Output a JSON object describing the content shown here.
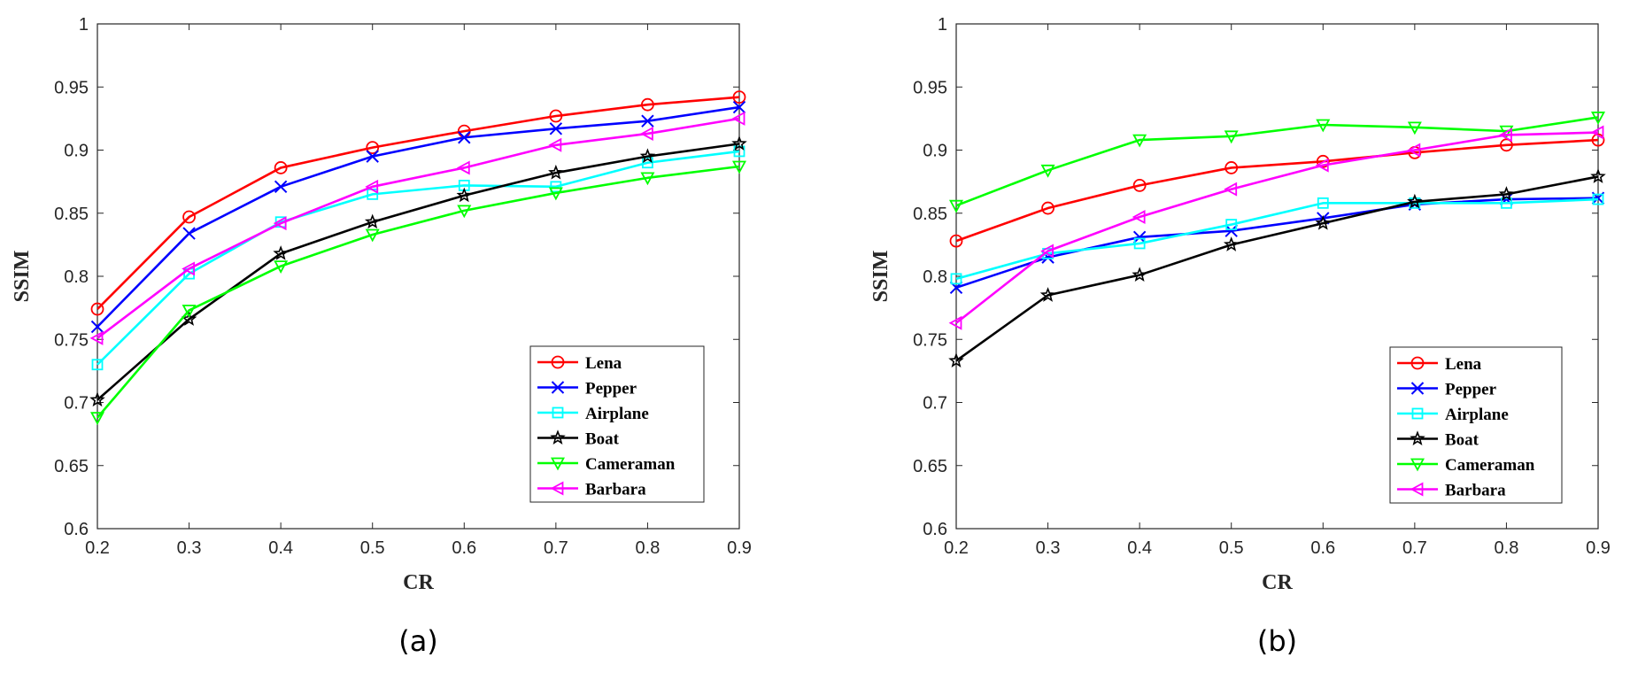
{
  "chart_data": [
    {
      "type": "line",
      "caption": "(a)",
      "xlabel": "CR",
      "ylabel": "SSIM",
      "xlim": [
        0.2,
        0.9
      ],
      "ylim": [
        0.6,
        1.0
      ],
      "xticks": [
        "0.2",
        "0.3",
        "0.4",
        "0.5",
        "0.6",
        "0.7",
        "0.8",
        "0.9"
      ],
      "yticks": [
        "0.6",
        "0.65",
        "0.7",
        "0.75",
        "0.8",
        "0.85",
        "0.9",
        "0.95",
        "1"
      ],
      "legend_position": "bottom-right",
      "x": [
        0.2,
        0.3,
        0.4,
        0.5,
        0.6,
        0.7,
        0.8,
        0.9
      ],
      "series": [
        {
          "name": "Lena",
          "color": "#ff0000",
          "marker": "circle",
          "values": [
            0.774,
            0.847,
            0.886,
            0.902,
            0.915,
            0.927,
            0.936,
            0.942
          ]
        },
        {
          "name": "Pepper",
          "color": "#0000ff",
          "marker": "x",
          "values": [
            0.76,
            0.834,
            0.871,
            0.895,
            0.91,
            0.917,
            0.923,
            0.934
          ]
        },
        {
          "name": "Airplane",
          "color": "#00ffff",
          "marker": "square",
          "values": [
            0.73,
            0.802,
            0.843,
            0.865,
            0.872,
            0.871,
            0.89,
            0.899
          ]
        },
        {
          "name": "Boat",
          "color": "#000000",
          "marker": "star",
          "values": [
            0.702,
            0.766,
            0.818,
            0.843,
            0.864,
            0.882,
            0.895,
            0.905
          ]
        },
        {
          "name": "Cameraman",
          "color": "#00ff00",
          "marker": "triangle-down",
          "values": [
            0.688,
            0.773,
            0.808,
            0.833,
            0.852,
            0.866,
            0.878,
            0.887
          ]
        },
        {
          "name": "Barbara",
          "color": "#ff00ff",
          "marker": "triangle-left",
          "values": [
            0.751,
            0.806,
            0.842,
            0.871,
            0.886,
            0.904,
            0.913,
            0.925
          ]
        }
      ]
    },
    {
      "type": "line",
      "caption": "(b)",
      "xlabel": "CR",
      "ylabel": "SSIM",
      "xlim": [
        0.2,
        0.9
      ],
      "ylim": [
        0.6,
        1.0
      ],
      "xticks": [
        "0.2",
        "0.3",
        "0.4",
        "0.5",
        "0.6",
        "0.7",
        "0.8",
        "0.9"
      ],
      "yticks": [
        "0.6",
        "0.65",
        "0.7",
        "0.75",
        "0.8",
        "0.85",
        "0.9",
        "0.95",
        "1"
      ],
      "legend_position": "bottom-right",
      "x": [
        0.2,
        0.3,
        0.4,
        0.5,
        0.6,
        0.7,
        0.8,
        0.9
      ],
      "series": [
        {
          "name": "Lena",
          "color": "#ff0000",
          "marker": "circle",
          "values": [
            0.828,
            0.854,
            0.872,
            0.886,
            0.891,
            0.898,
            0.904,
            0.908
          ]
        },
        {
          "name": "Pepper",
          "color": "#0000ff",
          "marker": "x",
          "values": [
            0.791,
            0.815,
            0.831,
            0.836,
            0.846,
            0.857,
            0.861,
            0.862
          ]
        },
        {
          "name": "Airplane",
          "color": "#00ffff",
          "marker": "square",
          "values": [
            0.798,
            0.818,
            0.826,
            0.841,
            0.858,
            0.858,
            0.858,
            0.861
          ]
        },
        {
          "name": "Boat",
          "color": "#000000",
          "marker": "star",
          "values": [
            0.733,
            0.785,
            0.801,
            0.825,
            0.842,
            0.859,
            0.865,
            0.879
          ]
        },
        {
          "name": "Cameraman",
          "color": "#00ff00",
          "marker": "triangle-down",
          "values": [
            0.856,
            0.884,
            0.908,
            0.911,
            0.92,
            0.918,
            0.915,
            0.926
          ]
        },
        {
          "name": "Barbara",
          "color": "#ff00ff",
          "marker": "triangle-left",
          "values": [
            0.763,
            0.82,
            0.847,
            0.869,
            0.888,
            0.9,
            0.912,
            0.914
          ]
        }
      ]
    }
  ]
}
